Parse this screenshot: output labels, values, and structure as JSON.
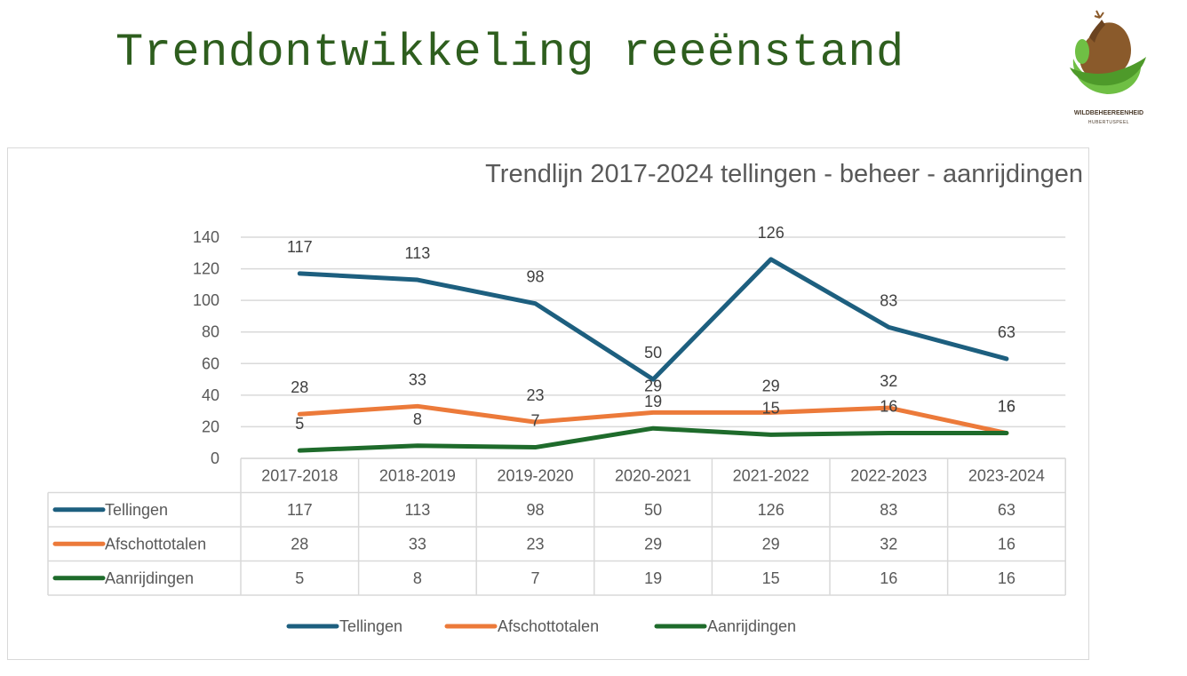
{
  "page": {
    "title": "Trendontwikkeling reeënstand",
    "logo": {
      "line1": "WILDBEHEEREENHEID",
      "line2": "HUBERTUSPEEL"
    }
  },
  "colors": {
    "title": "#2e5e1e",
    "Tellingen": "#1d5f7f",
    "Afschottotalen": "#ec7a3a",
    "Aanrijdingen": "#1e6b2b",
    "grid": "#d9d9d9",
    "text": "#595959"
  },
  "chart_data": {
    "type": "line",
    "title": "Trendlijn 2017-2024 tellingen - beheer - aanrijdingen",
    "categories": [
      "2017-2018",
      "2018-2019",
      "2019-2020",
      "2020-2021",
      "2021-2022",
      "2022-2023",
      "2023-2024"
    ],
    "series": [
      {
        "name": "Tellingen",
        "values": [
          117,
          113,
          98,
          50,
          126,
          83,
          63
        ]
      },
      {
        "name": "Afschottotalen",
        "values": [
          28,
          33,
          23,
          29,
          29,
          32,
          16
        ]
      },
      {
        "name": "Aanrijdingen",
        "values": [
          5,
          8,
          7,
          19,
          15,
          16,
          16
        ]
      }
    ],
    "y_ticks": [
      0,
      20,
      40,
      60,
      80,
      100,
      120,
      140
    ],
    "ylim": [
      0,
      140
    ],
    "grid": true,
    "data_labels": true,
    "data_table": true,
    "legend": "bottom"
  }
}
